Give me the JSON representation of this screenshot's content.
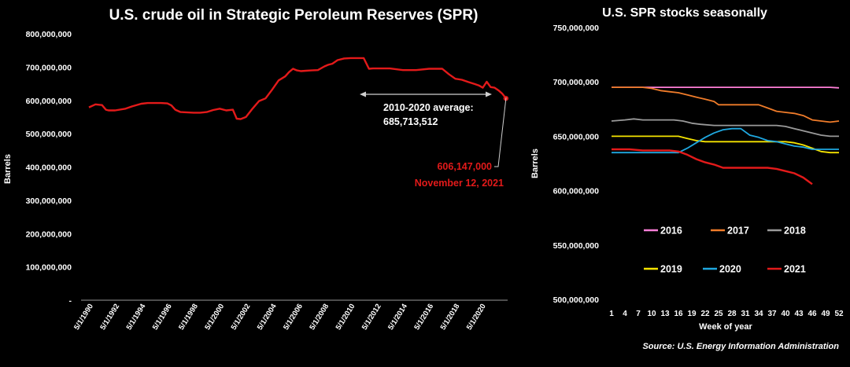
{
  "chart_data": [
    {
      "type": "line",
      "title": "U.S. crude oil in Strategic Peroleum Reserves (SPR)",
      "ylabel": "Barrels",
      "xlabel": "",
      "ylim": [
        0,
        800000000
      ],
      "ytick_labels": [
        "-",
        "100,000,000",
        "200,000,000",
        "300,000,000",
        "400,000,000",
        "500,000,000",
        "600,000,000",
        "700,000,000",
        "800,000,000"
      ],
      "xtick_labels": [
        "5/1/1990",
        "5/1/1992",
        "5/1/1994",
        "5/1/1996",
        "5/1/1998",
        "5/1/2000",
        "5/1/2002",
        "5/1/2004",
        "5/1/2006",
        "5/1/2008",
        "5/1/2010",
        "5/1/2012",
        "5/1/2014",
        "5/1/2016",
        "5/1/2018",
        "5/1/2020"
      ],
      "color": "#e31a1a",
      "series": [
        {
          "x": [
            1990.0,
            1990.5,
            1991.0,
            1991.3,
            1991.5,
            1992.0,
            1992.8,
            1993.3,
            1994.0,
            1994.5,
            1995.0,
            1995.5,
            1996.0,
            1996.3,
            1996.6,
            1997.0,
            1998.0,
            1998.5,
            1999.0,
            1999.5,
            2000.0,
            2000.5,
            2001.0,
            2001.3,
            2001.6,
            2002.0,
            2002.5,
            2003.0,
            2003.5,
            2004.0,
            2004.5,
            2005.0,
            2005.3,
            2005.6,
            2005.9,
            2006.2,
            2006.6,
            2007.0,
            2007.5,
            2008.0,
            2008.3,
            2008.6,
            2009.0,
            2009.5,
            2010.0,
            2011.0,
            2011.4,
            2011.7,
            2012.0,
            2013.0,
            2014.0,
            2015.0,
            2016.0,
            2017.0,
            2017.5,
            2018.0,
            2018.5,
            2019.0,
            2019.5,
            2019.8,
            2020.1,
            2020.4,
            2020.7,
            2021.0,
            2021.3,
            2021.6,
            2021.87
          ],
          "y": [
            579000000,
            588000000,
            586000000,
            572000000,
            570000000,
            570000000,
            575000000,
            582000000,
            590000000,
            592000000,
            592000000,
            592000000,
            591000000,
            585000000,
            572000000,
            565000000,
            563000000,
            563000000,
            565000000,
            571000000,
            575000000,
            570000000,
            572000000,
            545000000,
            544000000,
            550000000,
            575000000,
            598000000,
            606000000,
            632000000,
            660000000,
            672000000,
            685000000,
            695000000,
            690000000,
            688000000,
            689000000,
            690000000,
            691000000,
            702000000,
            707000000,
            710000000,
            721000000,
            726000000,
            727000000,
            727000000,
            695000000,
            696000000,
            696000000,
            696000000,
            691000000,
            691000000,
            695000000,
            695000000,
            679000000,
            665000000,
            662000000,
            655000000,
            649000000,
            645000000,
            638000000,
            656000000,
            640000000,
            638000000,
            630000000,
            620000000,
            606147000
          ]
        }
      ],
      "annotations": [
        {
          "text": "2010-2020 average:",
          "color": "#ffffff"
        },
        {
          "text": "685,713,512",
          "color": "#ffffff"
        },
        {
          "text": "606,147,000",
          "color": "#e31a1a"
        },
        {
          "text": "November 12, 2021",
          "color": "#e31a1a"
        }
      ]
    },
    {
      "type": "line",
      "title": "U.S. SPR stocks seasonally",
      "ylabel": "Barrels",
      "xlabel": "Week of year",
      "ylim": [
        500000000,
        750000000
      ],
      "ytick_labels": [
        "500,000,000",
        "550,000,000",
        "600,000,000",
        "650,000,000",
        "700,000,000",
        "750,000,000"
      ],
      "xtick_labels": [
        "1",
        "4",
        "7",
        "10",
        "13",
        "16",
        "19",
        "22",
        "25",
        "28",
        "31",
        "34",
        "37",
        "40",
        "43",
        "46",
        "49",
        "52"
      ],
      "xlim": [
        1,
        52
      ],
      "series": [
        {
          "name": "2016",
          "color": "#ff7fd8",
          "x": [
            1,
            10,
            20,
            30,
            40,
            50,
            52
          ],
          "y": [
            695000000,
            695000000,
            695000000,
            695000000,
            695000000,
            695000000,
            694500000
          ]
        },
        {
          "name": "2017",
          "color": "#f07c2a",
          "x": [
            1,
            8,
            10,
            12,
            14,
            16,
            18,
            20,
            22,
            24,
            25,
            27,
            28,
            32,
            34,
            36,
            38,
            40,
            42,
            44,
            46,
            48,
            50,
            52
          ],
          "y": [
            695000000,
            695000000,
            694000000,
            692000000,
            691000000,
            690000000,
            688000000,
            686000000,
            684000000,
            682000000,
            679000000,
            679000000,
            679000000,
            679000000,
            679000000,
            676000000,
            673000000,
            672000000,
            671000000,
            669000000,
            665000000,
            664000000,
            663000000,
            664000000
          ]
        },
        {
          "name": "2018",
          "color": "#9a9a9a",
          "x": [
            1,
            4,
            6,
            8,
            10,
            13,
            15,
            17,
            19,
            21,
            24,
            27,
            30,
            33,
            36,
            38,
            40,
            42,
            44,
            46,
            48,
            50,
            52
          ],
          "y": [
            664000000,
            665000000,
            666000000,
            665000000,
            665000000,
            665000000,
            665000000,
            664000000,
            662000000,
            661000000,
            660000000,
            660000000,
            660000000,
            660000000,
            660000000,
            660000000,
            659000000,
            657000000,
            655000000,
            653000000,
            651000000,
            650000000,
            650000000
          ]
        },
        {
          "name": "2019",
          "color": "#f5e400",
          "x": [
            1,
            8,
            14,
            16,
            18,
            20,
            22,
            26,
            30,
            34,
            38,
            40,
            42,
            44,
            46,
            48,
            50,
            52
          ],
          "y": [
            650000000,
            650000000,
            650000000,
            650000000,
            648000000,
            646000000,
            645000000,
            645000000,
            645000000,
            645000000,
            645000000,
            645000000,
            644000000,
            642000000,
            639000000,
            636000000,
            635000000,
            635000000
          ]
        },
        {
          "name": "2020",
          "color": "#1fa8e0",
          "x": [
            1,
            10,
            16,
            18,
            20,
            22,
            24,
            26,
            28,
            30,
            32,
            34,
            36,
            38,
            40,
            42,
            44,
            46,
            48,
            50,
            52
          ],
          "y": [
            635000000,
            635000000,
            635000000,
            639000000,
            644000000,
            649000000,
            653000000,
            656000000,
            657000000,
            657000000,
            651000000,
            649000000,
            646000000,
            645000000,
            643000000,
            641000000,
            640000000,
            638000000,
            638000000,
            638000000,
            638000000
          ]
        },
        {
          "name": "2021",
          "color": "#e31a1a",
          "x": [
            1,
            5,
            8,
            11,
            14,
            16,
            18,
            20,
            22,
            24,
            26,
            28,
            30,
            32,
            34,
            36,
            38,
            40,
            42,
            44,
            45,
            46
          ],
          "y": [
            638000000,
            638000000,
            637000000,
            637000000,
            637000000,
            636000000,
            633000000,
            629000000,
            626000000,
            624000000,
            621000000,
            621000000,
            621000000,
            621000000,
            621000000,
            621000000,
            620000000,
            618000000,
            616000000,
            612000000,
            609000000,
            606000000
          ]
        }
      ],
      "source": "Source: U.S. Energy Information Administration"
    }
  ]
}
